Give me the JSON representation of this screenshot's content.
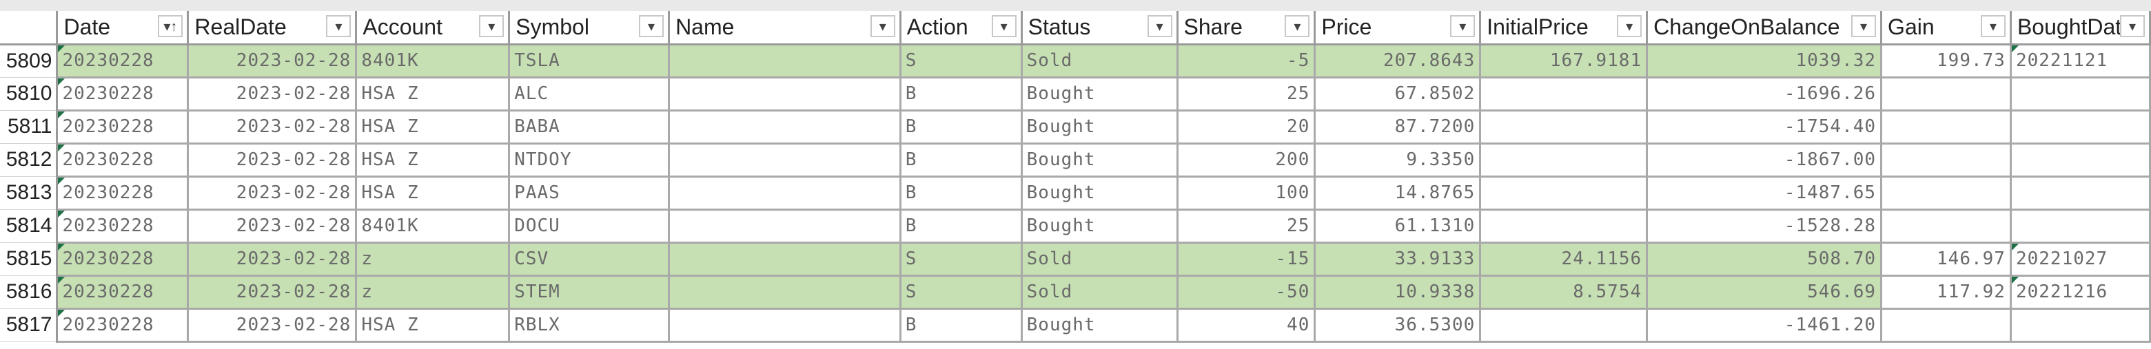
{
  "columns": [
    {
      "label": "Date",
      "filter_icon": "sort-asc-filter-icon",
      "glyph": "▾↑"
    },
    {
      "label": "RealDate",
      "filter_icon": "filter-dropdown-icon",
      "glyph": "▾"
    },
    {
      "label": "Account",
      "filter_icon": "filter-dropdown-icon",
      "glyph": "▾"
    },
    {
      "label": "Symbol",
      "filter_icon": "filter-dropdown-icon",
      "glyph": "▾"
    },
    {
      "label": "Name",
      "filter_icon": "filter-dropdown-icon",
      "glyph": "▾"
    },
    {
      "label": "Action",
      "filter_icon": "filter-dropdown-icon",
      "glyph": "▾"
    },
    {
      "label": "Status",
      "filter_icon": "filter-dropdown-icon",
      "glyph": "▾"
    },
    {
      "label": "Share",
      "filter_icon": "filter-dropdown-icon",
      "glyph": "▾"
    },
    {
      "label": "Price",
      "filter_icon": "filter-dropdown-icon",
      "glyph": "▾"
    },
    {
      "label": "InitialPrice",
      "filter_icon": "filter-dropdown-icon",
      "glyph": "▾"
    },
    {
      "label": "ChangeOnBalance",
      "filter_icon": "filter-dropdown-icon",
      "glyph": "▾"
    },
    {
      "label": "Gain",
      "filter_icon": "filter-dropdown-icon",
      "glyph": "▾"
    },
    {
      "label": "BoughtDat",
      "filter_icon": "filter-dropdown-icon",
      "glyph": "▾"
    }
  ],
  "rows": [
    {
      "num": "5809",
      "sold": true,
      "cells": [
        "20230228",
        "2023-02-28",
        "8401K",
        "TSLA",
        "",
        "S",
        "Sold",
        "-5",
        "207.8643",
        "167.9181",
        "1039.32",
        "199.73",
        "20221121"
      ]
    },
    {
      "num": "5810",
      "sold": false,
      "cells": [
        "20230228",
        "2023-02-28",
        "HSA Z",
        "ALC",
        "",
        "B",
        "Bought",
        "25",
        "67.8502",
        "",
        "-1696.26",
        "",
        ""
      ]
    },
    {
      "num": "5811",
      "sold": false,
      "cells": [
        "20230228",
        "2023-02-28",
        "HSA Z",
        "BABA",
        "",
        "B",
        "Bought",
        "20",
        "87.7200",
        "",
        "-1754.40",
        "",
        ""
      ]
    },
    {
      "num": "5812",
      "sold": false,
      "cells": [
        "20230228",
        "2023-02-28",
        "HSA Z",
        "NTDOY",
        "",
        "B",
        "Bought",
        "200",
        "9.3350",
        "",
        "-1867.00",
        "",
        ""
      ]
    },
    {
      "num": "5813",
      "sold": false,
      "cells": [
        "20230228",
        "2023-02-28",
        "HSA Z",
        "PAAS",
        "",
        "B",
        "Bought",
        "100",
        "14.8765",
        "",
        "-1487.65",
        "",
        ""
      ]
    },
    {
      "num": "5814",
      "sold": false,
      "cells": [
        "20230228",
        "2023-02-28",
        "8401K",
        "DOCU",
        "",
        "B",
        "Bought",
        "25",
        "61.1310",
        "",
        "-1528.28",
        "",
        ""
      ]
    },
    {
      "num": "5815",
      "sold": true,
      "cells": [
        "20230228",
        "2023-02-28",
        "z",
        "CSV",
        "",
        "S",
        "Sold",
        "-15",
        "33.9133",
        "24.1156",
        "508.70",
        "146.97",
        "20221027"
      ]
    },
    {
      "num": "5816",
      "sold": true,
      "cells": [
        "20230228",
        "2023-02-28",
        "z",
        "STEM",
        "",
        "S",
        "Sold",
        "-50",
        "10.9338",
        "8.5754",
        "546.69",
        "117.92",
        "20221216"
      ]
    },
    {
      "num": "5817",
      "sold": false,
      "cells": [
        "20230228",
        "2023-02-28",
        "HSA Z",
        "RBLX",
        "",
        "B",
        "Bought",
        "40",
        "36.5300",
        "",
        "-1461.20",
        "",
        ""
      ]
    }
  ]
}
